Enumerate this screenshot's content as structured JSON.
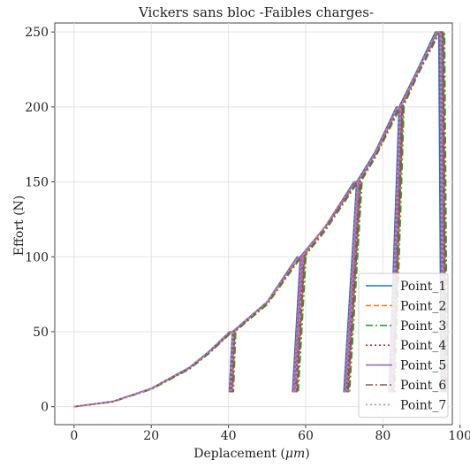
{
  "chart_data": {
    "type": "line",
    "title": "Vickers sans bloc -Faibles charges-",
    "xlabel": "Deplacement",
    "xlabel_unit": "μm",
    "ylabel": "Effort (N)",
    "xlim": [
      -5,
      98
    ],
    "ylim": [
      -12,
      256
    ],
    "xticks": [
      0,
      20,
      40,
      60,
      80,
      100
    ],
    "yticks": [
      0,
      50,
      100,
      150,
      200,
      250
    ],
    "grid": true,
    "legend_position": "bottom-right",
    "series": [
      {
        "name": "Point_1",
        "color": "#1f77b4",
        "dash": "solid",
        "points": [
          [
            0,
            0
          ],
          [
            10,
            3.5
          ],
          [
            20,
            12.2
          ],
          [
            30,
            26.4
          ],
          [
            35,
            37
          ],
          [
            40.3,
            50
          ],
          [
            41.2,
            50
          ],
          [
            40.6,
            10
          ],
          [
            40.2,
            10
          ],
          [
            41,
            50
          ],
          [
            50,
            70
          ],
          [
            57.8,
            100
          ],
          [
            59,
            100
          ],
          [
            57,
            10
          ],
          [
            56.6,
            10
          ],
          [
            58.6,
            100
          ],
          [
            65,
            120
          ],
          [
            72.5,
            150
          ],
          [
            73.5,
            150
          ],
          [
            70.3,
            10
          ],
          [
            69.9,
            10
          ],
          [
            73.2,
            150
          ],
          [
            78,
            170
          ],
          [
            83.5,
            200
          ],
          [
            84.4,
            200
          ],
          [
            82,
            10
          ],
          [
            81.6,
            10
          ],
          [
            84.2,
            200
          ],
          [
            89,
            225
          ],
          [
            93.6,
            250
          ],
          [
            94.8,
            250
          ],
          [
            95.5,
            10
          ],
          [
            95.1,
            10
          ],
          [
            94.5,
            250
          ]
        ]
      },
      {
        "name": "Point_2",
        "color": "#ff7f0e",
        "dash": "6,3",
        "points": [
          [
            0,
            0
          ],
          [
            10,
            3.3
          ],
          [
            20,
            11.8
          ],
          [
            30,
            25.7
          ],
          [
            35,
            36
          ],
          [
            40.8,
            50
          ],
          [
            41.7,
            50
          ],
          [
            41.1,
            10
          ],
          [
            40.7,
            10
          ],
          [
            41.5,
            50
          ],
          [
            50,
            69
          ],
          [
            58.5,
            100
          ],
          [
            59.7,
            100
          ],
          [
            57.7,
            10
          ],
          [
            57.3,
            10
          ],
          [
            59.3,
            100
          ],
          [
            65,
            119
          ],
          [
            73.2,
            150
          ],
          [
            74.2,
            150
          ],
          [
            71,
            10
          ],
          [
            70.6,
            10
          ],
          [
            73.9,
            150
          ],
          [
            78,
            168
          ],
          [
            84.2,
            200
          ],
          [
            85.1,
            200
          ],
          [
            82.7,
            10
          ],
          [
            82.3,
            10
          ],
          [
            84.9,
            200
          ],
          [
            89,
            223
          ],
          [
            94.4,
            250
          ],
          [
            95.6,
            250
          ],
          [
            96.3,
            10
          ],
          [
            95.9,
            10
          ],
          [
            95.3,
            250
          ]
        ]
      },
      {
        "name": "Point_3",
        "color": "#2ca02c",
        "dash": "8,3,2,3",
        "points": [
          [
            0,
            0
          ],
          [
            10,
            3.2
          ],
          [
            20,
            11.5
          ],
          [
            30,
            25.2
          ],
          [
            35,
            35.5
          ],
          [
            41,
            50
          ],
          [
            41.9,
            50
          ],
          [
            41.3,
            10
          ],
          [
            40.9,
            10
          ],
          [
            41.7,
            50
          ],
          [
            50,
            68
          ],
          [
            58.9,
            100
          ],
          [
            60.1,
            100
          ],
          [
            58.1,
            10
          ],
          [
            57.7,
            10
          ],
          [
            59.7,
            100
          ],
          [
            65,
            117
          ],
          [
            73.6,
            150
          ],
          [
            74.6,
            150
          ],
          [
            71.4,
            10
          ],
          [
            71,
            10
          ],
          [
            74.3,
            150
          ],
          [
            78,
            166
          ],
          [
            84.6,
            200
          ],
          [
            85.5,
            200
          ],
          [
            83.1,
            10
          ],
          [
            82.7,
            10
          ],
          [
            85.3,
            200
          ],
          [
            89,
            221
          ],
          [
            94.8,
            250
          ],
          [
            96,
            250
          ],
          [
            96.7,
            10
          ],
          [
            96.3,
            10
          ],
          [
            95.7,
            250
          ]
        ]
      },
      {
        "name": "Point_4",
        "color": "#d62728",
        "dash": "2,3",
        "points": [
          [
            0,
            0
          ],
          [
            10,
            3.3
          ],
          [
            20,
            11.9
          ],
          [
            30,
            25.9
          ],
          [
            35,
            36.3
          ],
          [
            40.6,
            50
          ],
          [
            41.5,
            50
          ],
          [
            40.9,
            10
          ],
          [
            40.5,
            10
          ],
          [
            41.3,
            50
          ],
          [
            50,
            69.5
          ],
          [
            58.3,
            100
          ],
          [
            59.5,
            100
          ],
          [
            57.5,
            10
          ],
          [
            57.1,
            10
          ],
          [
            59.1,
            100
          ],
          [
            65,
            119
          ],
          [
            73,
            150
          ],
          [
            74,
            150
          ],
          [
            70.8,
            10
          ],
          [
            70.4,
            10
          ],
          [
            73.7,
            150
          ],
          [
            78,
            168
          ],
          [
            84,
            200
          ],
          [
            84.9,
            200
          ],
          [
            82.5,
            10
          ],
          [
            82.1,
            10
          ],
          [
            84.7,
            200
          ],
          [
            89,
            223
          ],
          [
            94.2,
            250
          ],
          [
            95.4,
            250
          ],
          [
            96.1,
            10
          ],
          [
            95.7,
            10
          ],
          [
            95.1,
            250
          ]
        ]
      },
      {
        "name": "Point_5",
        "color": "#9467bd",
        "dash": "solid",
        "points": [
          [
            0,
            0
          ],
          [
            10,
            3.4
          ],
          [
            20,
            12
          ],
          [
            30,
            26.1
          ],
          [
            35,
            36.6
          ],
          [
            40.5,
            50
          ],
          [
            41.4,
            50
          ],
          [
            40.8,
            10
          ],
          [
            40.4,
            10
          ],
          [
            41.2,
            50
          ],
          [
            50,
            69.8
          ],
          [
            58,
            100
          ],
          [
            59.2,
            100
          ],
          [
            57.2,
            10
          ],
          [
            56.8,
            10
          ],
          [
            58.8,
            100
          ],
          [
            65,
            120
          ],
          [
            72.8,
            150
          ],
          [
            73.8,
            150
          ],
          [
            70.6,
            10
          ],
          [
            70.2,
            10
          ],
          [
            73.5,
            150
          ],
          [
            78,
            169
          ],
          [
            83.8,
            200
          ],
          [
            84.7,
            200
          ],
          [
            82.3,
            10
          ],
          [
            81.9,
            10
          ],
          [
            84.5,
            200
          ],
          [
            89,
            224
          ],
          [
            94,
            250
          ],
          [
            95.2,
            250
          ],
          [
            95.9,
            10
          ],
          [
            95.5,
            10
          ],
          [
            94.9,
            250
          ]
        ]
      },
      {
        "name": "Point_6",
        "color": "#8c564b",
        "dash": "8,3,2,3",
        "points": [
          [
            0,
            0
          ],
          [
            10,
            3.3
          ],
          [
            20,
            11.9
          ],
          [
            30,
            25.8
          ],
          [
            35,
            36.2
          ],
          [
            40.7,
            50
          ],
          [
            41.6,
            50
          ],
          [
            41,
            10
          ],
          [
            40.6,
            10
          ],
          [
            41.4,
            50
          ],
          [
            50,
            69.3
          ],
          [
            58.6,
            100
          ],
          [
            59.8,
            100
          ],
          [
            57.8,
            10
          ],
          [
            57.4,
            10
          ],
          [
            59.4,
            100
          ],
          [
            65,
            118.5
          ],
          [
            73.3,
            150
          ],
          [
            74.3,
            150
          ],
          [
            71.1,
            10
          ],
          [
            70.7,
            10
          ],
          [
            74,
            150
          ],
          [
            78,
            167
          ],
          [
            84.3,
            200
          ],
          [
            85.2,
            200
          ],
          [
            82.8,
            10
          ],
          [
            82.4,
            10
          ],
          [
            85,
            200
          ],
          [
            89,
            222
          ],
          [
            94.5,
            250
          ],
          [
            95.7,
            250
          ],
          [
            96.4,
            10
          ],
          [
            96,
            10
          ],
          [
            95.4,
            250
          ]
        ]
      },
      {
        "name": "Point_7",
        "color": "#e377c2",
        "dash": "2,3",
        "points": [
          [
            0,
            0
          ],
          [
            10,
            3.4
          ],
          [
            20,
            12.1
          ],
          [
            30,
            26.2
          ],
          [
            35,
            36.8
          ],
          [
            40.4,
            50
          ],
          [
            41.3,
            50
          ],
          [
            40.7,
            10
          ],
          [
            40.3,
            10
          ],
          [
            41.1,
            50
          ],
          [
            50,
            69.9
          ],
          [
            58.1,
            100
          ],
          [
            59.3,
            100
          ],
          [
            57.3,
            10
          ],
          [
            56.9,
            10
          ],
          [
            58.9,
            100
          ],
          [
            65,
            120
          ],
          [
            72.7,
            150
          ],
          [
            73.7,
            150
          ],
          [
            70.5,
            10
          ],
          [
            70.1,
            10
          ],
          [
            73.4,
            150
          ],
          [
            78,
            169
          ],
          [
            83.7,
            200
          ],
          [
            84.6,
            200
          ],
          [
            82.2,
            10
          ],
          [
            81.8,
            10
          ],
          [
            84.4,
            200
          ],
          [
            89,
            224
          ],
          [
            93.9,
            250
          ],
          [
            95.1,
            250
          ],
          [
            95.8,
            10
          ],
          [
            95.4,
            10
          ],
          [
            94.8,
            250
          ]
        ]
      }
    ]
  }
}
